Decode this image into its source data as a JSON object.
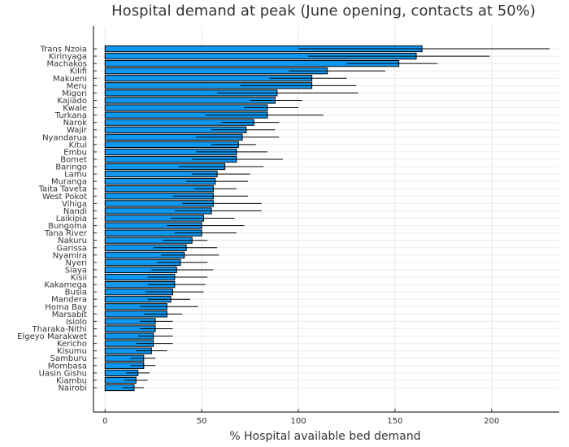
{
  "chart_data": {
    "type": "bar",
    "orientation": "horizontal",
    "title": "Hospital demand at peak (June opening, contacts at 50%)",
    "xlabel": "% Hospital available bed demand",
    "ylabel": "",
    "xlim": [
      -6,
      235
    ],
    "xticks": [
      0,
      50,
      100,
      150,
      200
    ],
    "grid": true,
    "legend": "none",
    "bar_color": "#0f97f0",
    "categories": [
      "Trans Nzoia",
      "Kirinyaga",
      "Machakos",
      "Kilifi",
      "Makueni",
      "Meru",
      "Migori",
      "Kajiado",
      "Kwale",
      "Turkana",
      "Narok",
      "Wajir",
      "Nyandarua",
      "Kitui",
      "Embu",
      "Bomet",
      "Baringo",
      "Lamu",
      "Muranga",
      "Taita Taveta",
      "West Pokot",
      "Vihiga",
      "Nandi",
      "Laikipia",
      "Bungoma",
      "Tana River",
      "Nakuru",
      "Garissa",
      "Nyamira",
      "Nyeri",
      "Siaya",
      "Kisii",
      "Kakamega",
      "Busia",
      "Mandera",
      "Homa Bay",
      "Marsabit",
      "Isiolo",
      "Tharaka-Nithi",
      "Elgeyo Marakwet",
      "Kericho",
      "Kisumu",
      "Samburu",
      "Mombasa",
      "Uasin Gishu",
      "Kiambu",
      "Nairobi"
    ],
    "values": [
      164,
      161,
      152,
      115,
      107,
      107,
      89,
      88,
      84,
      84,
      77,
      73,
      71,
      69,
      68,
      68,
      62,
      58,
      57,
      56,
      56,
      56,
      55,
      51,
      50,
      50,
      45,
      42,
      41,
      39,
      37,
      36,
      36,
      35,
      34,
      32,
      32,
      26,
      26,
      25,
      25,
      24,
      20,
      20,
      17,
      16,
      15
    ],
    "err_low": [
      100,
      105,
      125,
      95,
      85,
      70,
      58,
      75,
      72,
      52,
      60,
      55,
      47,
      55,
      47,
      45,
      38,
      45,
      42,
      46,
      35,
      40,
      36,
      34,
      32,
      36,
      30,
      25,
      29,
      27,
      24,
      22,
      22,
      21,
      22,
      18,
      20,
      18,
      18,
      17,
      16,
      16,
      13,
      13,
      11,
      10,
      9
    ],
    "err_high": [
      230,
      199,
      172,
      145,
      125,
      130,
      131,
      102,
      100,
      113,
      90,
      88,
      90,
      78,
      84,
      92,
      82,
      75,
      74,
      68,
      74,
      81,
      81,
      67,
      72,
      68,
      53,
      58,
      59,
      53,
      56,
      53,
      52,
      51,
      44,
      48,
      40,
      35,
      35,
      35,
      35,
      32,
      26,
      26,
      23,
      22,
      20
    ]
  }
}
